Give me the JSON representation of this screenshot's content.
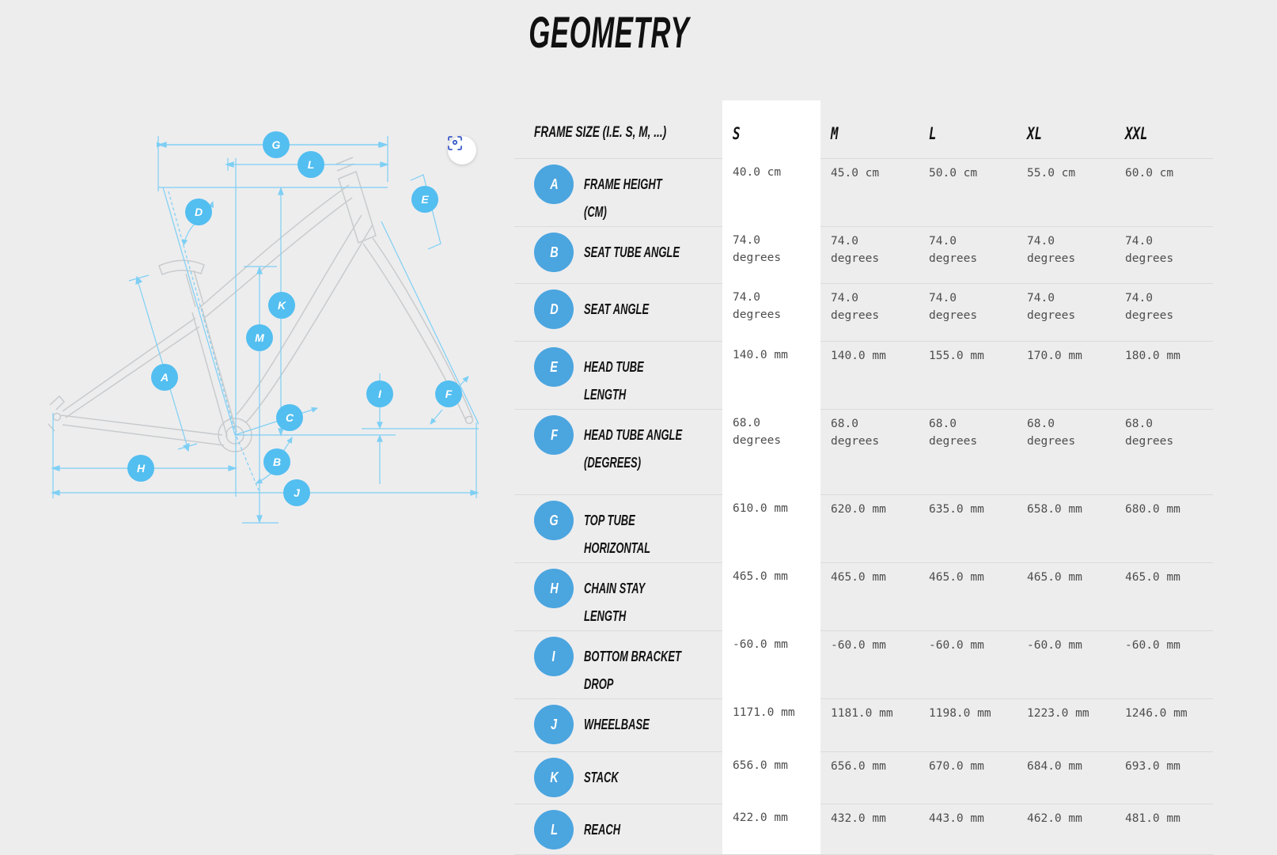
{
  "page": {
    "title": "GEOMETRY"
  },
  "colors": {
    "background": "#ededee",
    "table_highlight": "#ffffff",
    "separator": "#dadbdc",
    "table_marker_blue": "#4ba5df",
    "diagram_marker_blue": "#53bef0",
    "dimension_line_blue": "#7ecff4",
    "frame_gray": "#c8cbcd",
    "expand_icon_blue": "#3a5bc8",
    "value_text": "#4d4d4d"
  },
  "diagram": {
    "expand_button": {
      "icon": "scan-expand-icon"
    },
    "markers": [
      "G",
      "L",
      "D",
      "E",
      "K",
      "M",
      "A",
      "C",
      "I",
      "F",
      "B",
      "H",
      "J"
    ]
  },
  "table": {
    "header": {
      "label": "FRAME SIZE (I.E. S, M, ...)",
      "columns": [
        "S",
        "M",
        "L",
        "XL",
        "XXL"
      ],
      "highlighted_column": "S"
    },
    "rows": [
      {
        "key": "A",
        "label": "FRAME HEIGHT (CM)",
        "values": [
          "40.0 cm",
          "45.0 cm",
          "50.0 cm",
          "55.0 cm",
          "60.0 cm"
        ]
      },
      {
        "key": "B",
        "label": "SEAT TUBE ANGLE",
        "values": [
          "74.0 degrees",
          "74.0 degrees",
          "74.0 degrees",
          "74.0 degrees",
          "74.0 degrees"
        ]
      },
      {
        "key": "D",
        "label": "SEAT ANGLE",
        "values": [
          "74.0 degrees",
          "74.0 degrees",
          "74.0 degrees",
          "74.0 degrees",
          "74.0 degrees"
        ]
      },
      {
        "key": "E",
        "label": "HEAD TUBE LENGTH",
        "values": [
          "140.0 mm",
          "140.0 mm",
          "155.0 mm",
          "170.0 mm",
          "180.0 mm"
        ]
      },
      {
        "key": "F",
        "label": "HEAD TUBE ANGLE (DEGREES)",
        "values": [
          "68.0 degrees",
          "68.0 degrees",
          "68.0 degrees",
          "68.0 degrees",
          "68.0 degrees"
        ]
      },
      {
        "key": "G",
        "label": "TOP TUBE HORIZONTAL",
        "values": [
          "610.0 mm",
          "620.0 mm",
          "635.0 mm",
          "658.0 mm",
          "680.0 mm"
        ]
      },
      {
        "key": "H",
        "label": "CHAIN STAY LENGTH",
        "values": [
          "465.0 mm",
          "465.0 mm",
          "465.0 mm",
          "465.0 mm",
          "465.0 mm"
        ]
      },
      {
        "key": "I",
        "label": "BOTTOM BRACKET DROP",
        "values": [
          "-60.0 mm",
          "-60.0 mm",
          "-60.0 mm",
          "-60.0 mm",
          "-60.0 mm"
        ]
      },
      {
        "key": "J",
        "label": "WHEELBASE",
        "values": [
          "1171.0 mm",
          "1181.0 mm",
          "1198.0 mm",
          "1223.0 mm",
          "1246.0 mm"
        ]
      },
      {
        "key": "K",
        "label": "STACK",
        "values": [
          "656.0 mm",
          "656.0 mm",
          "670.0 mm",
          "684.0 mm",
          "693.0 mm"
        ]
      },
      {
        "key": "L",
        "label": "REACH",
        "values": [
          "422.0 mm",
          "432.0 mm",
          "443.0 mm",
          "462.0 mm",
          "481.0 mm"
        ]
      }
    ]
  }
}
